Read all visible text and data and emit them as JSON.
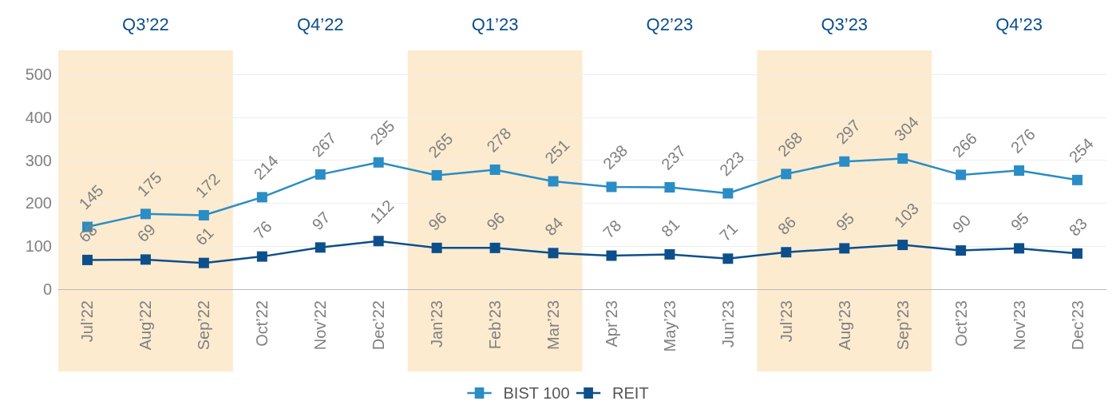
{
  "chart_data": {
    "type": "line",
    "categories": [
      "Jul’22",
      "Aug’22",
      "Sep’22",
      "Oct’22",
      "Nov’22",
      "Dec’22",
      "Jan’23",
      "Feb’23",
      "Mar’23",
      "Apr’23",
      "May’23",
      "Jun’23",
      "Jul’23",
      "Aug’23",
      "Sep’23",
      "Oct’23",
      "Nov’23",
      "Dec’23"
    ],
    "series": [
      {
        "name": "BIST 100",
        "color": "#2a8dc5",
        "values": [
          145,
          175,
          172,
          214,
          267,
          295,
          265,
          278,
          251,
          238,
          237,
          223,
          268,
          297,
          304,
          266,
          276,
          254
        ]
      },
      {
        "name": "REIT",
        "color": "#0d4f8b",
        "values": [
          68,
          69,
          61,
          76,
          97,
          112,
          96,
          96,
          84,
          78,
          81,
          71,
          86,
          95,
          103,
          90,
          95,
          83
        ]
      }
    ],
    "ylim": [
      0,
      500
    ],
    "yticks": [
      0,
      100,
      200,
      300,
      400,
      500
    ],
    "bands": [
      {
        "axis": "x",
        "from": "Jul’22",
        "to": "Sep’22",
        "label": "Q3’22",
        "color": "#fdebd0"
      },
      {
        "axis": "x",
        "from": "Jan’23",
        "to": "Mar’23",
        "label": "Q1’23",
        "color": "#fdebd0"
      },
      {
        "axis": "x",
        "from": "Jul’23",
        "to": "Sep’23",
        "label": "Q3’23",
        "color": "#fdebd0"
      }
    ],
    "annotations": [
      "Q4’22",
      "Q2’23",
      "Q4’23"
    ],
    "grid": "y",
    "legend": "bottom",
    "marker": "square",
    "line_style": "solid",
    "data_labels": true
  }
}
